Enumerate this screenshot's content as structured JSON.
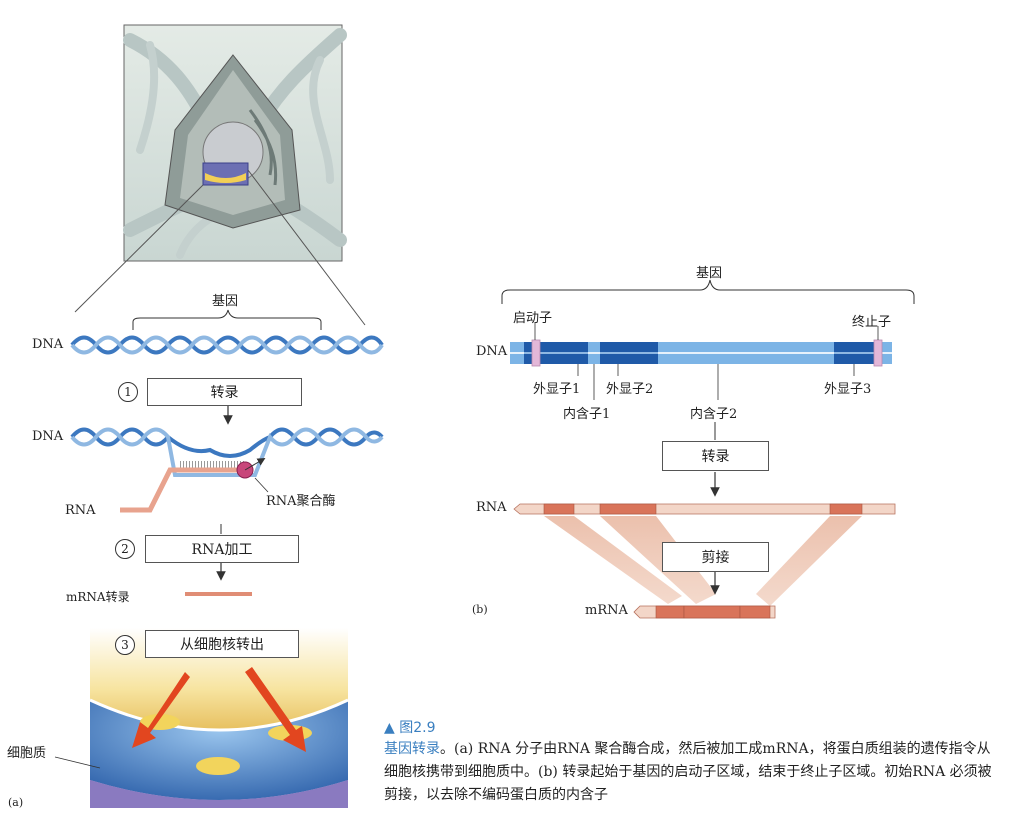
{
  "panel_a": {
    "gene_label": "基因",
    "dna_label_1": "DNA",
    "dna_label_2": "DNA",
    "rna_label": "RNA",
    "rna_polymerase_label": "RNA聚合酶",
    "mrna_label": "mRNA转录",
    "cytoplasm_label": "细胞质",
    "panel_tag": "(a)",
    "steps": [
      {
        "num": "1",
        "label": "转录"
      },
      {
        "num": "2",
        "label": "RNA加工"
      },
      {
        "num": "3",
        "label": "从细胞核转出"
      }
    ]
  },
  "panel_b": {
    "gene_label": "基因",
    "promoter_label": "启动子",
    "terminator_label": "终止子",
    "dna_label": "DNA",
    "exon1_label": "外显子1",
    "exon2_label": "外显子2",
    "exon3_label": "外显子3",
    "intron1_label": "内含子1",
    "intron2_label": "内含子2",
    "transcription_label": "转录",
    "rna_label": "RNA",
    "splicing_label": "剪接",
    "mrna_label": "mRNA",
    "panel_tag": "(b)"
  },
  "caption": {
    "figure_label": "▲ 图2.9",
    "title": "基因转录",
    "text": "。(a) RNA 分子由RNA 聚合酶合成，然后被加工成mRNA，将蛋白质组装的遗传指令从细胞核携带到细胞质中。(b) 转录起始于基因的启动子区域，结束于终止子区域。初始RNA 必须被剪接，以去除不编码蛋白质的内含子"
  },
  "colors": {
    "dna_blue": "#3c78c0",
    "exon_blue": "#1f5aa8",
    "rna_salmon": "#e8a38e",
    "exon_rna": "#d9745a",
    "caption_blue": "#3a7fc0"
  }
}
